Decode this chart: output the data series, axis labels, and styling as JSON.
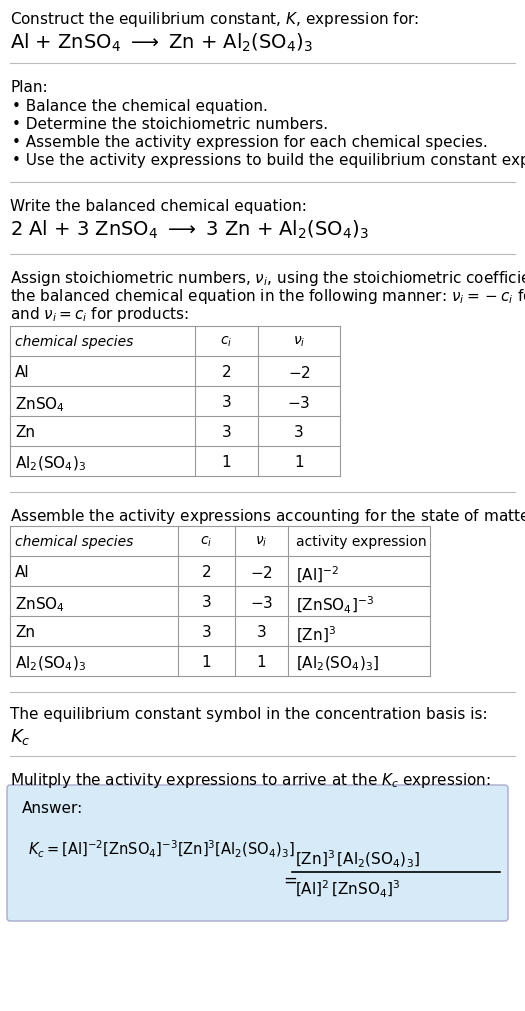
{
  "title_line1": "Construct the equilibrium constant, $K$, expression for:",
  "reaction_unbalanced": "Al + ZnSO$_4$ $\\longrightarrow$ Zn + Al$_2$(SO$_4$)$_3$",
  "plan_header": "Plan:",
  "plan_bullets": [
    "Balance the chemical equation.",
    "Determine the stoichiometric numbers.",
    "Assemble the activity expression for each chemical species.",
    "Use the activity expressions to build the equilibrium constant expression."
  ],
  "balanced_header": "Write the balanced chemical equation:",
  "reaction_balanced": "2 Al + 3 ZnSO$_4$ $\\longrightarrow$ 3 Zn + Al$_2$(SO$_4$)$_3$",
  "stoich_intro_lines": [
    "Assign stoichiometric numbers, $\\nu_i$, using the stoichiometric coefficients, $c_i$, from",
    "the balanced chemical equation in the following manner: $\\nu_i = -c_i$ for reactants",
    "and $\\nu_i = c_i$ for products:"
  ],
  "table1_headers": [
    "chemical species",
    "$c_i$",
    "$\\nu_i$"
  ],
  "table1_rows": [
    [
      "Al",
      "2",
      "$-$2"
    ],
    [
      "ZnSO$_4$",
      "3",
      "$-$3"
    ],
    [
      "Zn",
      "3",
      "3"
    ],
    [
      "Al$_2$(SO$_4$)$_3$",
      "1",
      "1"
    ]
  ],
  "activity_intro": "Assemble the activity expressions accounting for the state of matter and $\\nu_i$:",
  "table2_headers": [
    "chemical species",
    "$c_i$",
    "$\\nu_i$",
    "activity expression"
  ],
  "table2_rows": [
    [
      "Al",
      "2",
      "$-$2",
      "[Al]$^{-2}$"
    ],
    [
      "ZnSO$_4$",
      "3",
      "$-$3",
      "[ZnSO$_4$]$^{-3}$"
    ],
    [
      "Zn",
      "3",
      "3",
      "[Zn]$^3$"
    ],
    [
      "Al$_2$(SO$_4$)$_3$",
      "1",
      "1",
      "[Al$_2$(SO$_4$)$_3$]"
    ]
  ],
  "kc_text": "The equilibrium constant symbol in the concentration basis is:",
  "kc_symbol": "$K_c$",
  "multiply_text": "Mulitply the activity expressions to arrive at the $K_c$ expression:",
  "answer_label": "Answer:",
  "answer_box_color": "#d6eaf8",
  "background_color": "#ffffff",
  "text_color": "#000000",
  "table_border_color": "#999999",
  "separator_color": "#bbbbbb"
}
